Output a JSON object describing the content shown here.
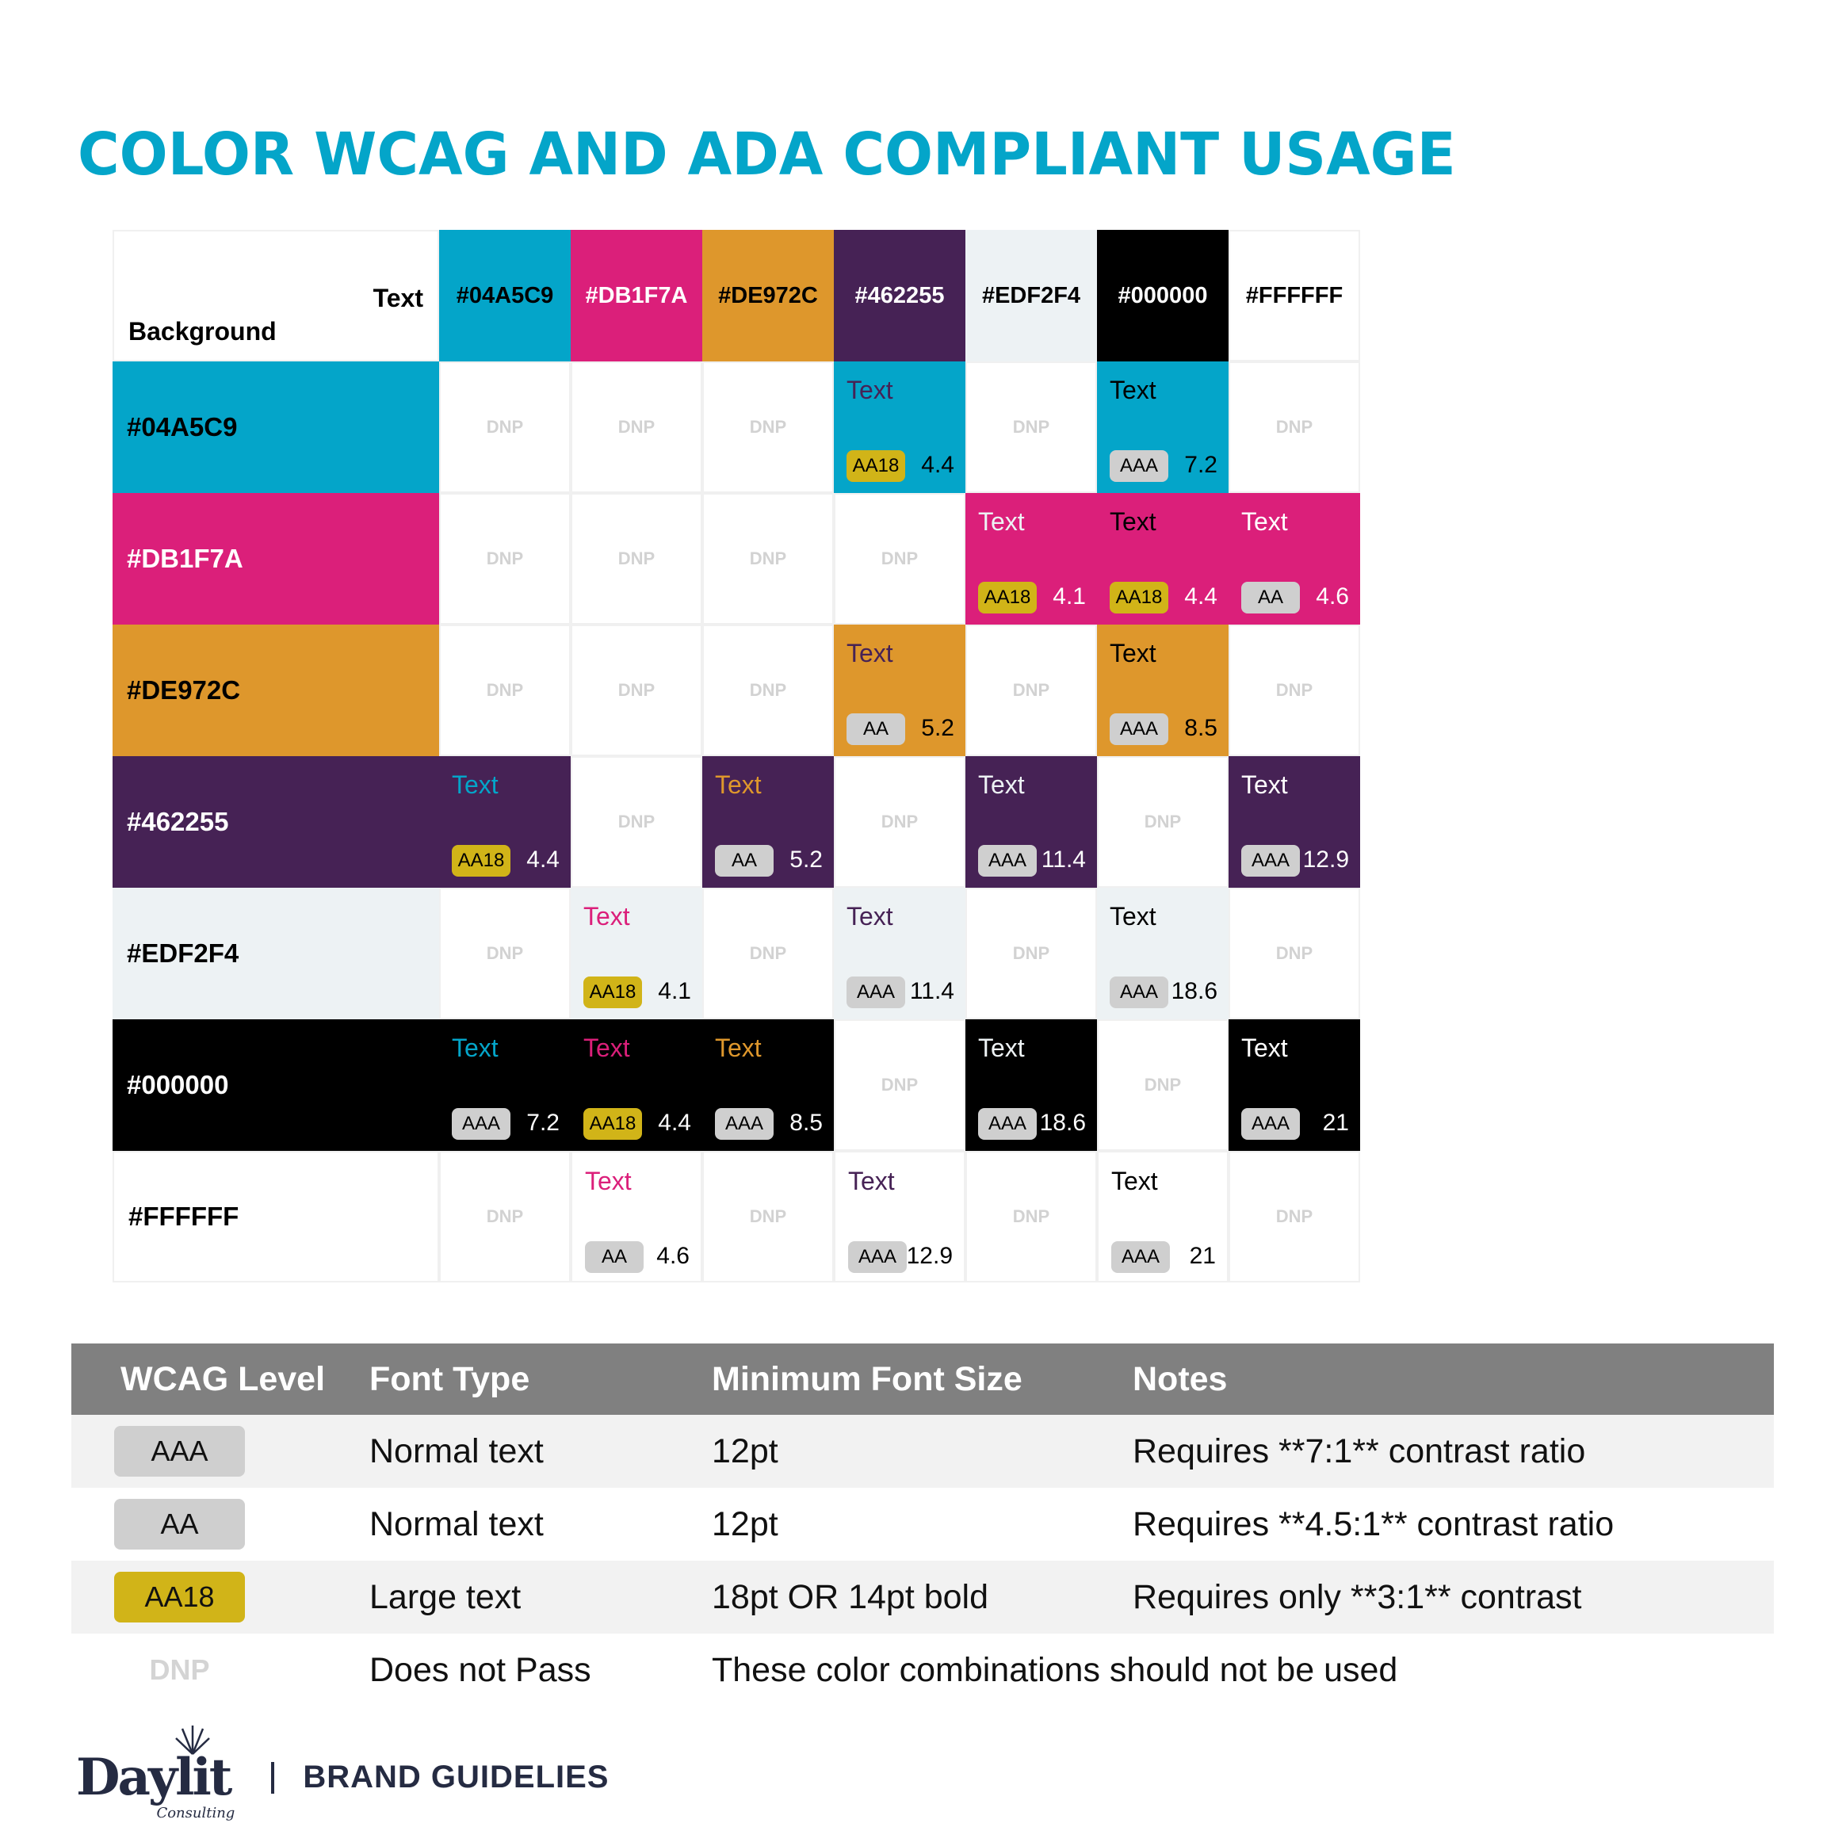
{
  "title": "COLOR WCAG AND ADA COMPLIANT USAGE",
  "matrix": {
    "corner": {
      "text_label": "Text",
      "background_label": "Background"
    },
    "columns": [
      {
        "hex": "#04A5C9",
        "bg": "#04A5C9",
        "fg": "#000000"
      },
      {
        "hex": "#DB1F7A",
        "bg": "#DB1F7A",
        "fg": "#FFFFFF"
      },
      {
        "hex": "#DE972C",
        "bg": "#DE972C",
        "fg": "#000000"
      },
      {
        "hex": "#462255",
        "bg": "#462255",
        "fg": "#FFFFFF"
      },
      {
        "hex": "#EDF2F4",
        "bg": "#EDF2F4",
        "fg": "#000000"
      },
      {
        "hex": "#000000",
        "bg": "#000000",
        "fg": "#FFFFFF"
      },
      {
        "hex": "#FFFFFF",
        "bg": "#FFFFFF",
        "fg": "#000000"
      }
    ],
    "rows": [
      {
        "hex": "#04A5C9",
        "bg": "#04A5C9",
        "fg": "#000000",
        "score_color": "#000000",
        "cells": [
          "DNP",
          "DNP",
          "DNP",
          {
            "level": "AA18",
            "score": "4.4"
          },
          "DNP",
          {
            "level": "AAA",
            "score": "7.2"
          },
          "DNP"
        ]
      },
      {
        "hex": "#DB1F7A",
        "bg": "#DB1F7A",
        "fg": "#FFFFFF",
        "score_color": "#FFFFFF",
        "cells": [
          "DNP",
          "DNP",
          "DNP",
          "DNP",
          {
            "level": "AA18",
            "score": "4.1"
          },
          {
            "level": "AA18",
            "score": "4.4"
          },
          {
            "level": "AA",
            "score": "4.6"
          }
        ]
      },
      {
        "hex": "#DE972C",
        "bg": "#DE972C",
        "fg": "#000000",
        "score_color": "#000000",
        "cells": [
          "DNP",
          "DNP",
          "DNP",
          {
            "level": "AA",
            "score": "5.2"
          },
          "DNP",
          {
            "level": "AAA",
            "score": "8.5"
          },
          "DNP"
        ]
      },
      {
        "hex": "#462255",
        "bg": "#462255",
        "fg": "#FFFFFF",
        "score_color": "#FFFFFF",
        "cells": [
          {
            "level": "AA18",
            "score": "4.4"
          },
          "DNP",
          {
            "level": "AA",
            "score": "5.2"
          },
          "DNP",
          {
            "level": "AAA",
            "score": "11.4"
          },
          "DNP",
          {
            "level": "AAA",
            "score": "12.9"
          }
        ]
      },
      {
        "hex": "#EDF2F4",
        "bg": "#EDF2F4",
        "fg": "#000000",
        "score_color": "#000000",
        "cells": [
          "DNP",
          {
            "level": "AA18",
            "score": "4.1"
          },
          "DNP",
          {
            "level": "AAA",
            "score": "11.4"
          },
          "DNP",
          {
            "level": "AAA",
            "score": "18.6"
          },
          "DNP"
        ]
      },
      {
        "hex": "#000000",
        "bg": "#000000",
        "fg": "#FFFFFF",
        "score_color": "#FFFFFF",
        "cells": [
          {
            "level": "AAA",
            "score": "7.2"
          },
          {
            "level": "AA18",
            "score": "4.4"
          },
          {
            "level": "AAA",
            "score": "8.5"
          },
          "DNP",
          {
            "level": "AAA",
            "score": "18.6"
          },
          "DNP",
          {
            "level": "AAA",
            "score": "21"
          }
        ]
      },
      {
        "hex": "#FFFFFF",
        "bg": "#FFFFFF",
        "fg": "#000000",
        "score_color": "#000000",
        "cells": [
          "DNP",
          {
            "level": "AA",
            "score": "4.6"
          },
          "DNP",
          {
            "level": "AAA",
            "score": "12.9"
          },
          "DNP",
          {
            "level": "AAA",
            "score": "21"
          },
          "DNP"
        ]
      }
    ],
    "sample_text": "Text",
    "dnp_label": "DNP"
  },
  "legend": {
    "headers": [
      "WCAG Level",
      "Font Type",
      "Minimum Font Size",
      "Notes"
    ],
    "rows": [
      {
        "level": "AAA",
        "font_type": "Normal text",
        "min_size": "12pt",
        "notes": "Requires **7:1** contrast ratio"
      },
      {
        "level": "AA",
        "font_type": "Normal text",
        "min_size": "12pt",
        "notes": "Requires **4.5:1** contrast ratio"
      },
      {
        "level": "AA18",
        "font_type": "Large text",
        "min_size": "18pt OR 14pt bold",
        "notes": "Requires only **3:1** contrast"
      },
      {
        "level": "DNP",
        "font_type": "Does not Pass",
        "min_size": "These color combinations should not be used",
        "notes": ""
      }
    ]
  },
  "footer": {
    "logo_text": "Daylit",
    "logo_subtext": "Consulting",
    "brand_label": "BRAND GUIDELIES"
  },
  "colors": {
    "title": "#04A5C9",
    "badge_gray": "#CFCFCF",
    "badge_gold": "#D1B418",
    "dnp_gray": "#D2D2D2",
    "legend_header": "#808080",
    "footer_navy": "#252B42"
  }
}
